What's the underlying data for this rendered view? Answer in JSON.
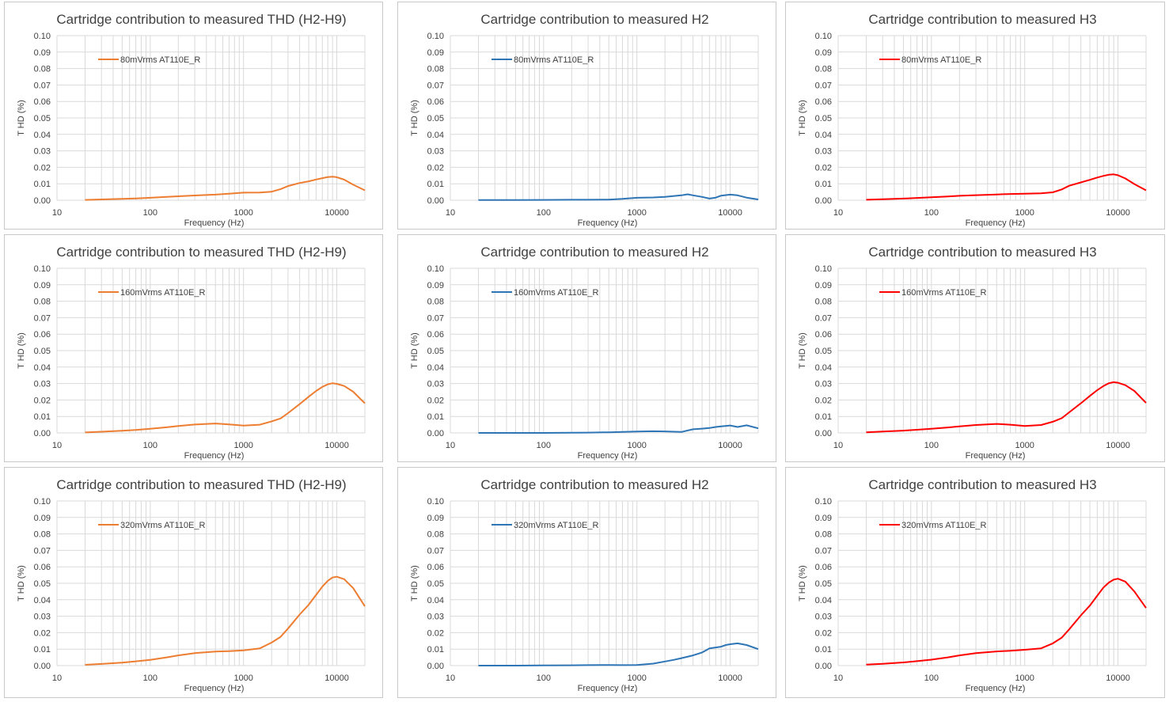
{
  "chart_data": [
    {
      "type": "line",
      "title": "Cartridge contribution to measured THD (H2-H9)",
      "xlabel": "Frequency (Hz)",
      "ylabel": "T HD (%)",
      "xscale": "log",
      "xlim": [
        10,
        20000
      ],
      "ylim": [
        0,
        0.1
      ],
      "xticks": [
        10,
        100,
        1000,
        10000
      ],
      "yticks": [
        0.0,
        0.01,
        0.02,
        0.03,
        0.04,
        0.05,
        0.06,
        0.07,
        0.08,
        0.09,
        0.1
      ],
      "grid": true,
      "legend": "top-left",
      "color": "#ED7D31",
      "series": [
        {
          "name": "80mVrms AT110E_R",
          "x": [
            20,
            30,
            50,
            70,
            100,
            150,
            200,
            300,
            500,
            700,
            1000,
            1500,
            2000,
            2500,
            3000,
            4000,
            5000,
            6000,
            7000,
            8000,
            9000,
            10000,
            12000,
            15000,
            20000
          ],
          "y": [
            0.0002,
            0.0005,
            0.0008,
            0.0011,
            0.0015,
            0.002,
            0.0024,
            0.0029,
            0.0034,
            0.004,
            0.0046,
            0.0047,
            0.0052,
            0.0068,
            0.0086,
            0.0105,
            0.0115,
            0.0126,
            0.0134,
            0.0141,
            0.0143,
            0.014,
            0.0125,
            0.0094,
            0.006
          ]
        }
      ]
    },
    {
      "type": "line",
      "title": "Cartridge contribution to measured H2",
      "xlabel": "Frequency (Hz)",
      "ylabel": "T HD (%)",
      "xscale": "log",
      "xlim": [
        10,
        20000
      ],
      "ylim": [
        0,
        0.1
      ],
      "xticks": [
        10,
        100,
        1000,
        10000
      ],
      "yticks": [
        0.0,
        0.01,
        0.02,
        0.03,
        0.04,
        0.05,
        0.06,
        0.07,
        0.08,
        0.09,
        0.1
      ],
      "grid": true,
      "legend": "top-left",
      "color": "#2E75B6",
      "series": [
        {
          "name": "80mVrms AT110E_R",
          "x": [
            20,
            50,
            100,
            200,
            300,
            500,
            700,
            1000,
            1500,
            2000,
            3000,
            3500,
            4000,
            5000,
            6000,
            7000,
            8000,
            10000,
            12000,
            15000,
            20000
          ],
          "y": [
            0.0001,
            0.0001,
            0.0002,
            0.0003,
            0.0003,
            0.0004,
            0.0008,
            0.0015,
            0.0017,
            0.002,
            0.003,
            0.0036,
            0.003,
            0.002,
            0.001,
            0.0016,
            0.0028,
            0.0034,
            0.003,
            0.0016,
            0.0005
          ]
        }
      ]
    },
    {
      "type": "line",
      "title": "Cartridge contribution to measured H3",
      "xlabel": "Frequency (Hz)",
      "ylabel": "T HD (%)",
      "xscale": "log",
      "xlim": [
        10,
        20000
      ],
      "ylim": [
        0,
        0.1
      ],
      "xticks": [
        10,
        100,
        1000,
        10000
      ],
      "yticks": [
        0.0,
        0.01,
        0.02,
        0.03,
        0.04,
        0.05,
        0.06,
        0.07,
        0.08,
        0.09,
        0.1
      ],
      "grid": true,
      "legend": "top-left",
      "color": "#FF0000",
      "series": [
        {
          "name": "80mVrms AT110E_R",
          "x": [
            20,
            30,
            50,
            70,
            100,
            150,
            200,
            300,
            500,
            700,
            1000,
            1500,
            2000,
            2500,
            3000,
            4000,
            5000,
            6000,
            7000,
            8000,
            9000,
            10000,
            12000,
            15000,
            20000
          ],
          "y": [
            0.0003,
            0.0006,
            0.001,
            0.0014,
            0.0018,
            0.0023,
            0.0027,
            0.0031,
            0.0035,
            0.0038,
            0.004,
            0.0042,
            0.0048,
            0.0066,
            0.0088,
            0.0108,
            0.0124,
            0.0138,
            0.0148,
            0.0155,
            0.0157,
            0.0152,
            0.0132,
            0.0098,
            0.006
          ]
        }
      ]
    },
    {
      "type": "line",
      "title": "Cartridge contribution to measured THD (H2-H9)",
      "xlabel": "Frequency (Hz)",
      "ylabel": "T HD (%)",
      "xscale": "log",
      "xlim": [
        10,
        20000
      ],
      "ylim": [
        0,
        0.1
      ],
      "xticks": [
        10,
        100,
        1000,
        10000
      ],
      "yticks": [
        0.0,
        0.01,
        0.02,
        0.03,
        0.04,
        0.05,
        0.06,
        0.07,
        0.08,
        0.09,
        0.1
      ],
      "grid": true,
      "legend": "top-left",
      "color": "#ED7D31",
      "series": [
        {
          "name": "160mVrms AT110E_R",
          "x": [
            20,
            30,
            50,
            70,
            100,
            150,
            200,
            300,
            500,
            700,
            1000,
            1500,
            2000,
            2500,
            3000,
            4000,
            5000,
            6000,
            7000,
            8000,
            9000,
            10000,
            12000,
            15000,
            20000
          ],
          "y": [
            0.0003,
            0.0007,
            0.0013,
            0.0018,
            0.0025,
            0.0034,
            0.0042,
            0.0051,
            0.0057,
            0.0052,
            0.0044,
            0.005,
            0.007,
            0.0088,
            0.012,
            0.0175,
            0.022,
            0.0255,
            0.028,
            0.0295,
            0.0302,
            0.0298,
            0.0285,
            0.025,
            0.018
          ]
        }
      ]
    },
    {
      "type": "line",
      "title": "Cartridge contribution to measured H2",
      "xlabel": "Frequency (Hz)",
      "ylabel": "T HD (%)",
      "xscale": "log",
      "xlim": [
        10,
        20000
      ],
      "ylim": [
        0,
        0.1
      ],
      "xticks": [
        10,
        100,
        1000,
        10000
      ],
      "yticks": [
        0.0,
        0.01,
        0.02,
        0.03,
        0.04,
        0.05,
        0.06,
        0.07,
        0.08,
        0.09,
        0.1
      ],
      "grid": true,
      "legend": "top-left",
      "color": "#2E75B6",
      "series": [
        {
          "name": "160mVrms AT110E_R",
          "x": [
            20,
            50,
            100,
            200,
            300,
            500,
            700,
            1000,
            1500,
            2000,
            3000,
            4000,
            5000,
            6000,
            7000,
            8000,
            10000,
            12000,
            15000,
            20000
          ],
          "y": [
            0.0,
            0.0,
            0.0,
            0.0001,
            0.0002,
            0.0004,
            0.0006,
            0.0008,
            0.001,
            0.0009,
            0.0006,
            0.0022,
            0.0026,
            0.003,
            0.0036,
            0.004,
            0.0045,
            0.0036,
            0.0046,
            0.0028
          ]
        }
      ]
    },
    {
      "type": "line",
      "title": "Cartridge contribution to measured H3",
      "xlabel": "Frequency (Hz)",
      "ylabel": "T HD (%)",
      "xscale": "log",
      "xlim": [
        10,
        20000
      ],
      "ylim": [
        0,
        0.1
      ],
      "xticks": [
        10,
        100,
        1000,
        10000
      ],
      "yticks": [
        0.0,
        0.01,
        0.02,
        0.03,
        0.04,
        0.05,
        0.06,
        0.07,
        0.08,
        0.09,
        0.1
      ],
      "grid": true,
      "legend": "top-left",
      "color": "#FF0000",
      "series": [
        {
          "name": "160mVrms AT110E_R",
          "x": [
            20,
            30,
            50,
            70,
            100,
            150,
            200,
            300,
            500,
            700,
            1000,
            1500,
            2000,
            2500,
            3000,
            4000,
            5000,
            6000,
            7000,
            8000,
            9000,
            10000,
            12000,
            15000,
            20000
          ],
          "y": [
            0.0004,
            0.0008,
            0.0014,
            0.0019,
            0.0025,
            0.0033,
            0.004,
            0.0048,
            0.0055,
            0.005,
            0.0042,
            0.0048,
            0.0068,
            0.009,
            0.0125,
            0.018,
            0.0225,
            0.026,
            0.0285,
            0.0302,
            0.0308,
            0.0305,
            0.029,
            0.0255,
            0.0182
          ]
        }
      ]
    },
    {
      "type": "line",
      "title": "Cartridge contribution to measured THD (H2-H9)",
      "xlabel": "Frequency (Hz)",
      "ylabel": "T HD (%)",
      "xscale": "log",
      "xlim": [
        10,
        20000
      ],
      "ylim": [
        0,
        0.1
      ],
      "xticks": [
        10,
        100,
        1000,
        10000
      ],
      "yticks": [
        0.0,
        0.01,
        0.02,
        0.03,
        0.04,
        0.05,
        0.06,
        0.07,
        0.08,
        0.09,
        0.1
      ],
      "grid": true,
      "legend": "top-left",
      "color": "#ED7D31",
      "series": [
        {
          "name": "320mVrms AT110E_R",
          "x": [
            20,
            30,
            50,
            70,
            100,
            150,
            200,
            300,
            500,
            700,
            1000,
            1500,
            2000,
            2500,
            3000,
            4000,
            5000,
            6000,
            7000,
            8000,
            9000,
            10000,
            12000,
            15000,
            20000
          ],
          "y": [
            0.0005,
            0.001,
            0.0018,
            0.0026,
            0.0035,
            0.005,
            0.0062,
            0.0076,
            0.0085,
            0.0088,
            0.0093,
            0.0105,
            0.014,
            0.0175,
            0.0225,
            0.031,
            0.037,
            0.043,
            0.048,
            0.0515,
            0.0535,
            0.054,
            0.0525,
            0.047,
            0.036
          ]
        }
      ]
    },
    {
      "type": "line",
      "title": "Cartridge contribution to measured H2",
      "xlabel": "Frequency (Hz)",
      "ylabel": "T HD (%)",
      "xscale": "log",
      "xlim": [
        10,
        20000
      ],
      "ylim": [
        0,
        0.1
      ],
      "xticks": [
        10,
        100,
        1000,
        10000
      ],
      "yticks": [
        0.0,
        0.01,
        0.02,
        0.03,
        0.04,
        0.05,
        0.06,
        0.07,
        0.08,
        0.09,
        0.1
      ],
      "grid": true,
      "legend": "top-left",
      "color": "#2E75B6",
      "series": [
        {
          "name": "320mVrms AT110E_R",
          "x": [
            20,
            50,
            100,
            200,
            300,
            500,
            700,
            1000,
            1500,
            2000,
            2500,
            3000,
            4000,
            5000,
            6000,
            7000,
            8000,
            9000,
            10000,
            12000,
            15000,
            20000
          ],
          "y": [
            0.0,
            0.0,
            0.0001,
            0.0002,
            0.0003,
            0.0004,
            0.0003,
            0.0004,
            0.0012,
            0.0025,
            0.0035,
            0.0045,
            0.0062,
            0.008,
            0.0105,
            0.011,
            0.0115,
            0.0125,
            0.013,
            0.0135,
            0.0125,
            0.01
          ]
        }
      ]
    },
    {
      "type": "line",
      "title": "Cartridge contribution to measured H3",
      "xlabel": "Frequency (Hz)",
      "ylabel": "T HD (%)",
      "xscale": "log",
      "xlim": [
        10,
        20000
      ],
      "ylim": [
        0,
        0.1
      ],
      "xticks": [
        10,
        100,
        1000,
        10000
      ],
      "yticks": [
        0.0,
        0.01,
        0.02,
        0.03,
        0.04,
        0.05,
        0.06,
        0.07,
        0.08,
        0.09,
        0.1
      ],
      "grid": true,
      "legend": "top-left",
      "color": "#FF0000",
      "series": [
        {
          "name": "320mVrms AT110E_R",
          "x": [
            20,
            30,
            50,
            70,
            100,
            150,
            200,
            300,
            500,
            700,
            1000,
            1500,
            2000,
            2500,
            3000,
            4000,
            5000,
            6000,
            7000,
            8000,
            9000,
            10000,
            12000,
            15000,
            20000
          ],
          "y": [
            0.0006,
            0.0011,
            0.0019,
            0.0027,
            0.0036,
            0.005,
            0.0062,
            0.0076,
            0.0086,
            0.009,
            0.0096,
            0.0105,
            0.0135,
            0.017,
            0.022,
            0.0305,
            0.0365,
            0.0425,
            0.0475,
            0.0505,
            0.0522,
            0.0528,
            0.051,
            0.045,
            0.035
          ]
        }
      ]
    }
  ]
}
